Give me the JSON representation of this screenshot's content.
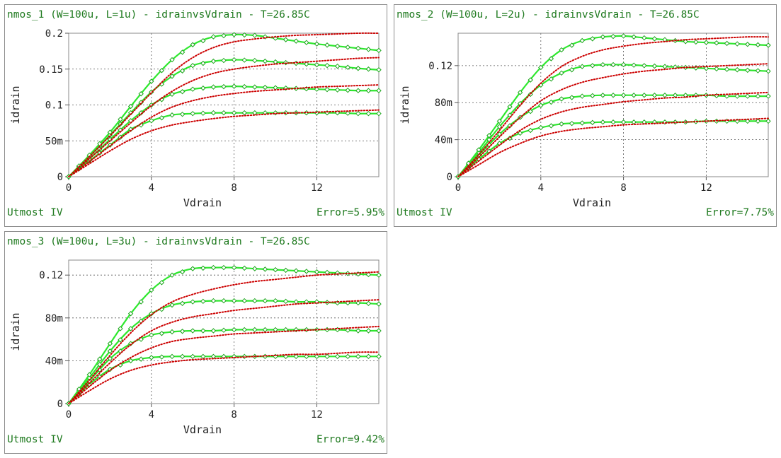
{
  "colors": {
    "measured": "#2ee82e",
    "measured_dark": "#1aa51a",
    "simulated": "#cc0000",
    "text": "#1f7a1f",
    "grid": "#555555"
  },
  "chart_data": [
    {
      "type": "line",
      "title": "nmos_1 (W=100u, L=1u) - idrainvsVdrain - T=26.85C",
      "xlabel": "Vdrain",
      "ylabel": "idrain",
      "footer_left": "Utmost IV",
      "footer_right": "Error=5.95%",
      "xlim": [
        0,
        15
      ],
      "ylim": [
        0,
        0.2
      ],
      "xticks": [
        {
          "v": 0,
          "label": "0"
        },
        {
          "v": 4,
          "label": "4"
        },
        {
          "v": 8,
          "label": "8"
        },
        {
          "v": 12,
          "label": "12"
        }
      ],
      "yticks": [
        {
          "v": 0,
          "label": "0"
        },
        {
          "v": 0.05,
          "label": "50m"
        },
        {
          "v": 0.1,
          "label": "0.1"
        },
        {
          "v": 0.15,
          "label": "0.15"
        },
        {
          "v": 0.2,
          "label": "0.2"
        }
      ],
      "grid": true,
      "x": [
        0,
        1,
        2,
        3,
        4,
        5,
        6,
        7,
        8,
        9,
        10,
        11,
        12,
        13,
        14,
        15
      ],
      "series": [
        {
          "kind": "measured",
          "values": [
            0,
            0.022,
            0.044,
            0.066,
            0.078,
            0.086,
            0.088,
            0.089,
            0.089,
            0.089,
            0.089,
            0.089,
            0.089,
            0.089,
            0.088,
            0.088
          ]
        },
        {
          "kind": "simulated",
          "values": [
            0,
            0.018,
            0.036,
            0.052,
            0.064,
            0.072,
            0.077,
            0.081,
            0.084,
            0.086,
            0.088,
            0.089,
            0.09,
            0.091,
            0.092,
            0.093
          ]
        },
        {
          "kind": "measured",
          "values": [
            0,
            0.025,
            0.052,
            0.078,
            0.1,
            0.115,
            0.122,
            0.125,
            0.126,
            0.125,
            0.124,
            0.123,
            0.122,
            0.121,
            0.12,
            0.12
          ]
        },
        {
          "kind": "simulated",
          "values": [
            0,
            0.021,
            0.043,
            0.064,
            0.083,
            0.097,
            0.106,
            0.112,
            0.116,
            0.119,
            0.121,
            0.123,
            0.125,
            0.126,
            0.127,
            0.128
          ]
        },
        {
          "kind": "measured",
          "values": [
            0,
            0.028,
            0.058,
            0.089,
            0.118,
            0.14,
            0.155,
            0.161,
            0.163,
            0.162,
            0.16,
            0.158,
            0.156,
            0.154,
            0.151,
            0.149
          ]
        },
        {
          "kind": "simulated",
          "values": [
            0,
            0.025,
            0.05,
            0.075,
            0.099,
            0.119,
            0.134,
            0.144,
            0.15,
            0.154,
            0.157,
            0.159,
            0.161,
            0.163,
            0.165,
            0.166
          ]
        },
        {
          "kind": "measured",
          "values": [
            0,
            0.03,
            0.062,
            0.098,
            0.133,
            0.163,
            0.184,
            0.195,
            0.198,
            0.197,
            0.193,
            0.189,
            0.185,
            0.182,
            0.179,
            0.176
          ]
        },
        {
          "kind": "simulated",
          "values": [
            0,
            0.028,
            0.057,
            0.087,
            0.117,
            0.145,
            0.166,
            0.18,
            0.188,
            0.192,
            0.195,
            0.197,
            0.198,
            0.199,
            0.2,
            0.2
          ]
        }
      ]
    },
    {
      "type": "line",
      "title": "nmos_2 (W=100u, L=2u) - idrainvsVdrain - T=26.85C",
      "xlabel": "Vdrain",
      "ylabel": "idrain",
      "footer_left": "Utmost IV",
      "footer_right": "Error=7.75%",
      "xlim": [
        0,
        15
      ],
      "ylim": [
        0,
        0.155
      ],
      "xticks": [
        {
          "v": 0,
          "label": "0"
        },
        {
          "v": 4,
          "label": "4"
        },
        {
          "v": 8,
          "label": "8"
        },
        {
          "v": 12,
          "label": "12"
        }
      ],
      "yticks": [
        {
          "v": 0,
          "label": "0"
        },
        {
          "v": 0.04,
          "label": "40m"
        },
        {
          "v": 0.08,
          "label": "80m"
        },
        {
          "v": 0.12,
          "label": "0.12"
        }
      ],
      "grid": true,
      "x": [
        0,
        1,
        2,
        3,
        4,
        5,
        6,
        7,
        8,
        9,
        10,
        11,
        12,
        13,
        14,
        15
      ],
      "series": [
        {
          "kind": "measured",
          "values": [
            0,
            0.019,
            0.036,
            0.047,
            0.053,
            0.057,
            0.058,
            0.059,
            0.059,
            0.059,
            0.059,
            0.059,
            0.06,
            0.06,
            0.06,
            0.06
          ]
        },
        {
          "kind": "simulated",
          "values": [
            0,
            0.013,
            0.026,
            0.036,
            0.044,
            0.049,
            0.052,
            0.054,
            0.056,
            0.057,
            0.058,
            0.059,
            0.06,
            0.061,
            0.062,
            0.063
          ]
        },
        {
          "kind": "measured",
          "values": [
            0,
            0.023,
            0.046,
            0.064,
            0.077,
            0.084,
            0.087,
            0.088,
            0.088,
            0.088,
            0.088,
            0.088,
            0.088,
            0.087,
            0.087,
            0.087
          ]
        },
        {
          "kind": "simulated",
          "values": [
            0,
            0.017,
            0.034,
            0.05,
            0.062,
            0.07,
            0.075,
            0.078,
            0.081,
            0.083,
            0.085,
            0.086,
            0.088,
            0.089,
            0.09,
            0.091
          ]
        },
        {
          "kind": "measured",
          "values": [
            0,
            0.026,
            0.054,
            0.079,
            0.099,
            0.112,
            0.119,
            0.121,
            0.121,
            0.12,
            0.119,
            0.118,
            0.117,
            0.116,
            0.115,
            0.114
          ]
        },
        {
          "kind": "simulated",
          "values": [
            0,
            0.021,
            0.043,
            0.064,
            0.082,
            0.094,
            0.102,
            0.107,
            0.111,
            0.114,
            0.116,
            0.118,
            0.119,
            0.12,
            0.121,
            0.122
          ]
        },
        {
          "kind": "measured",
          "values": [
            0,
            0.029,
            0.06,
            0.091,
            0.118,
            0.137,
            0.147,
            0.151,
            0.152,
            0.15,
            0.148,
            0.146,
            0.145,
            0.144,
            0.143,
            0.142
          ]
        },
        {
          "kind": "simulated",
          "values": [
            0,
            0.024,
            0.05,
            0.077,
            0.101,
            0.119,
            0.13,
            0.137,
            0.141,
            0.144,
            0.146,
            0.148,
            0.149,
            0.15,
            0.151,
            0.151
          ]
        }
      ]
    },
    {
      "type": "line",
      "title": "nmos_3 (W=100u, L=3u) - idrainvsVdrain - T=26.85C",
      "xlabel": "Vdrain",
      "ylabel": "idrain",
      "footer_left": "Utmost IV",
      "footer_right": "Error=9.42%",
      "xlim": [
        0,
        15
      ],
      "ylim": [
        0,
        0.134
      ],
      "xticks": [
        {
          "v": 0,
          "label": "0"
        },
        {
          "v": 4,
          "label": "4"
        },
        {
          "v": 8,
          "label": "8"
        },
        {
          "v": 12,
          "label": "12"
        }
      ],
      "yticks": [
        {
          "v": 0,
          "label": "0"
        },
        {
          "v": 0.04,
          "label": "40m"
        },
        {
          "v": 0.08,
          "label": "80m"
        },
        {
          "v": 0.12,
          "label": "0.12"
        }
      ],
      "grid": true,
      "x": [
        0,
        1,
        2,
        3,
        4,
        5,
        6,
        7,
        8,
        9,
        10,
        11,
        12,
        13,
        14,
        15
      ],
      "series": [
        {
          "kind": "measured",
          "values": [
            0,
            0.018,
            0.032,
            0.04,
            0.043,
            0.044,
            0.044,
            0.044,
            0.044,
            0.044,
            0.044,
            0.044,
            0.044,
            0.044,
            0.044,
            0.044
          ]
        },
        {
          "kind": "simulated",
          "values": [
            0,
            0.012,
            0.023,
            0.031,
            0.036,
            0.039,
            0.041,
            0.042,
            0.043,
            0.044,
            0.045,
            0.046,
            0.046,
            0.047,
            0.048,
            0.048
          ]
        },
        {
          "kind": "measured",
          "values": [
            0,
            0.021,
            0.042,
            0.056,
            0.064,
            0.067,
            0.068,
            0.068,
            0.069,
            0.069,
            0.069,
            0.069,
            0.069,
            0.069,
            0.068,
            0.068
          ]
        },
        {
          "kind": "simulated",
          "values": [
            0,
            0.016,
            0.031,
            0.043,
            0.052,
            0.058,
            0.061,
            0.063,
            0.065,
            0.066,
            0.067,
            0.068,
            0.069,
            0.07,
            0.071,
            0.072
          ]
        },
        {
          "kind": "measured",
          "values": [
            0,
            0.024,
            0.049,
            0.07,
            0.084,
            0.092,
            0.095,
            0.096,
            0.096,
            0.096,
            0.096,
            0.095,
            0.095,
            0.094,
            0.094,
            0.093
          ]
        },
        {
          "kind": "simulated",
          "values": [
            0,
            0.019,
            0.038,
            0.055,
            0.068,
            0.076,
            0.081,
            0.084,
            0.087,
            0.089,
            0.091,
            0.093,
            0.094,
            0.095,
            0.096,
            0.097
          ]
        },
        {
          "kind": "measured",
          "values": [
            0,
            0.027,
            0.056,
            0.084,
            0.106,
            0.12,
            0.126,
            0.127,
            0.127,
            0.126,
            0.125,
            0.124,
            0.123,
            0.122,
            0.121,
            0.12
          ]
        },
        {
          "kind": "simulated",
          "values": [
            0,
            0.022,
            0.045,
            0.066,
            0.083,
            0.095,
            0.102,
            0.107,
            0.111,
            0.114,
            0.116,
            0.118,
            0.12,
            0.121,
            0.122,
            0.123
          ]
        }
      ]
    }
  ]
}
